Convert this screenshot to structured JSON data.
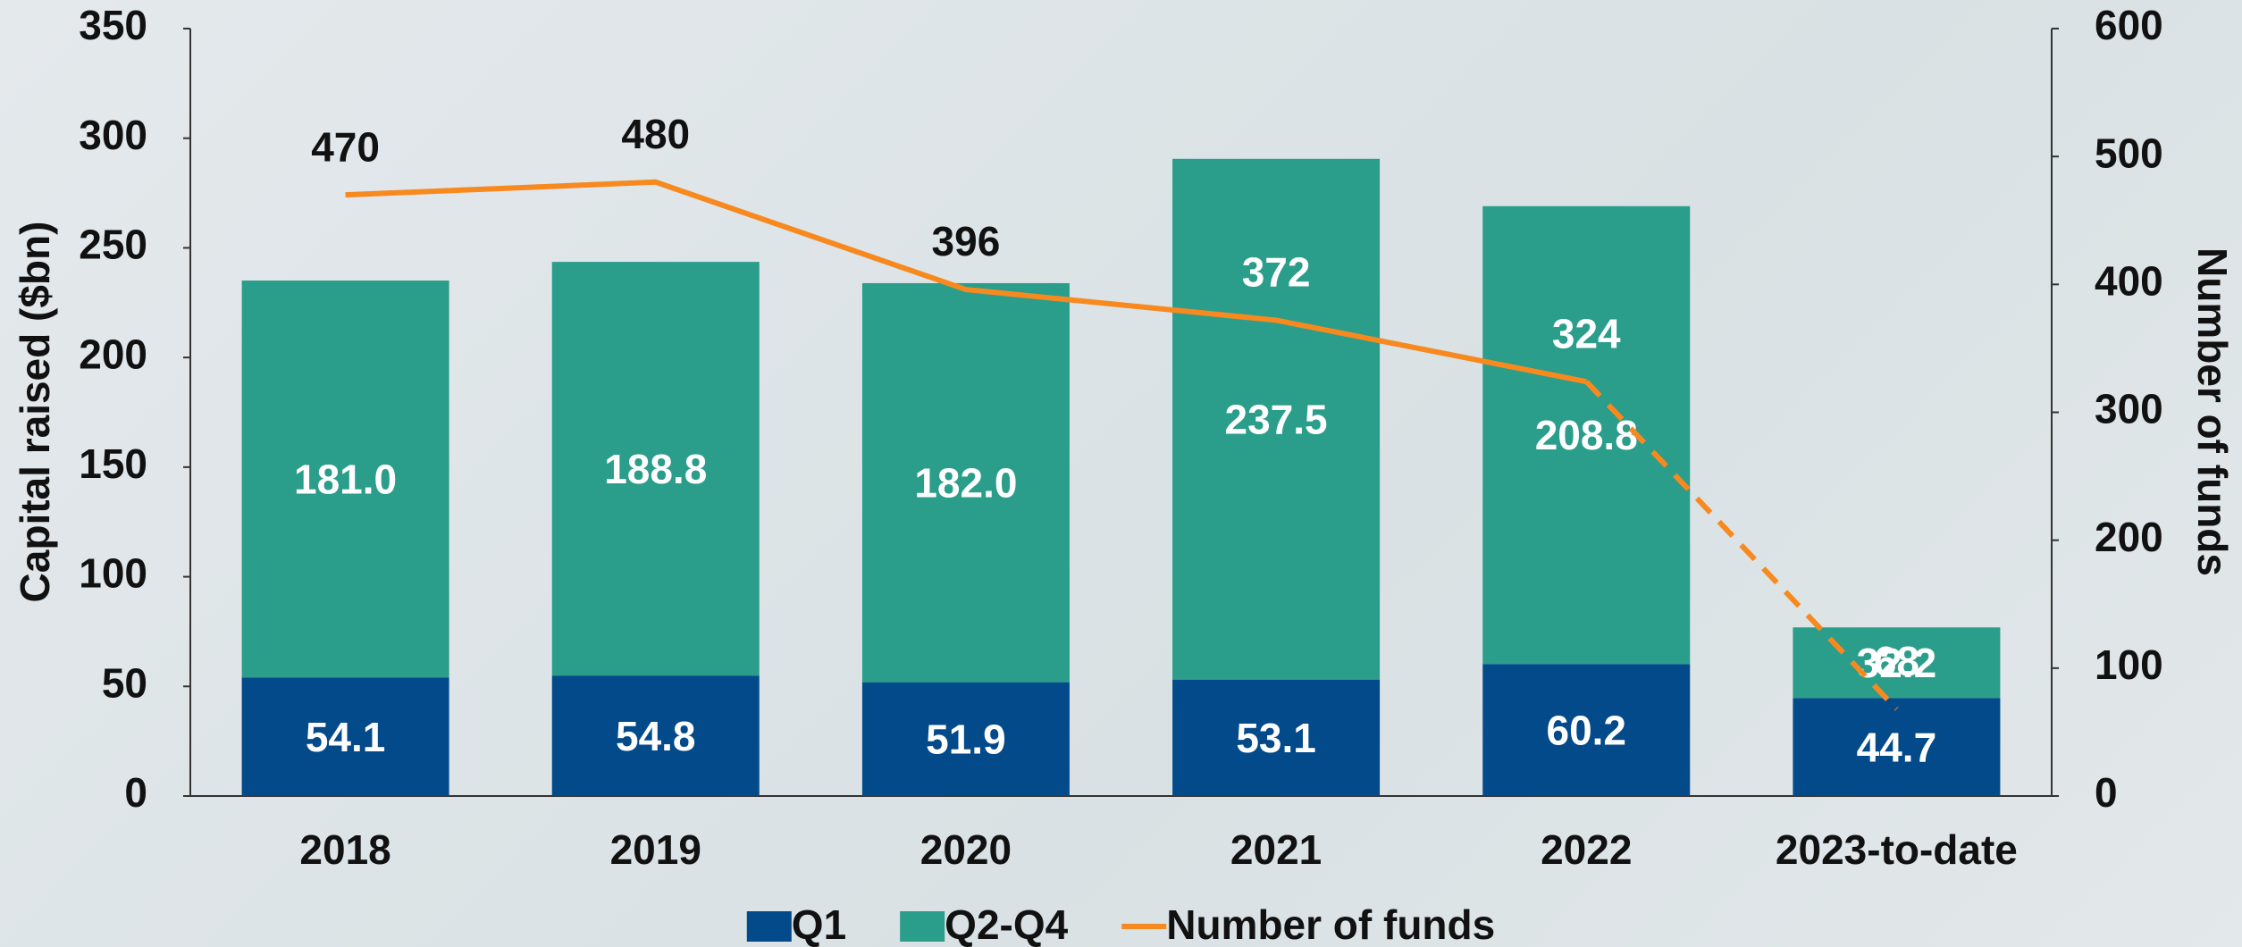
{
  "chart_data": {
    "type": "bar",
    "categories": [
      "2018",
      "2019",
      "2020",
      "2021",
      "2022",
      "2023-to-date"
    ],
    "series": [
      {
        "name": "Q1",
        "color": "#034a8a",
        "values": [
          54.1,
          54.8,
          51.9,
          53.1,
          60.2,
          44.7
        ]
      },
      {
        "name": "Q2-Q4",
        "color": "#2a9d8b",
        "values": [
          181.0,
          188.8,
          182.0,
          237.5,
          208.8,
          32.2
        ],
        "value_labels": [
          "181.0",
          "188.8",
          "182.0",
          "237.5",
          "208.8",
          "32.2"
        ]
      },
      {
        "name": "Number of funds",
        "color": "#f7891f",
        "axis": "y2",
        "type": "line",
        "values": [
          470,
          480,
          396,
          372,
          324,
          68
        ],
        "dashed_last_segment": true
      }
    ],
    "y_label": "Capital raised ($bn)",
    "y2_label": "Number of funds",
    "ylim": [
      0,
      350
    ],
    "yticks": [
      0,
      50,
      100,
      150,
      200,
      250,
      300,
      350
    ],
    "y2lim": [
      0,
      600
    ],
    "y2ticks": [
      0,
      100,
      200,
      300,
      400,
      500,
      600
    ],
    "stacked": true,
    "legend": "bottom"
  }
}
